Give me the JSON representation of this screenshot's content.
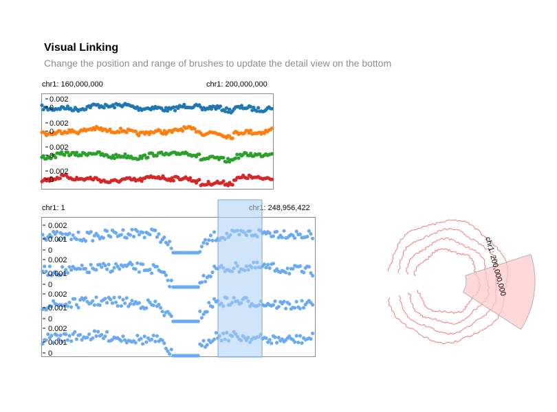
{
  "header": {
    "title": "Visual Linking",
    "subtitle": "Change the position and range of brushes to update the detail view on the bottom"
  },
  "detail_view": {
    "start_label": "chr1: 160,000,000",
    "end_label": "chr1: 200,000,000",
    "colors": [
      "#1f77b4",
      "#ff7f0e",
      "#2ca02c",
      "#d62728"
    ],
    "y_ticks": [
      "0.002",
      "0"
    ]
  },
  "overview": {
    "start_label": "chr1: 1",
    "end_label": "chr1: 248,956,422",
    "color": "#6aaaf0",
    "y_ticks": [
      "0.002",
      "0.001",
      "0"
    ],
    "brush_color": "#a9cdf5"
  },
  "circular_view": {
    "label": "chr1: 200,000,000",
    "line_color": "#f07b7b",
    "brush_color": "#ffc9c9"
  }
}
